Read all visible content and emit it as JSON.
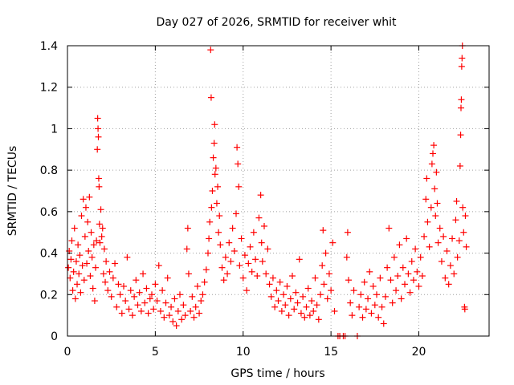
{
  "chart_data": {
    "type": "scatter",
    "title": "Day 027 of 2026, SRMTID for receiver whit",
    "xlabel": "GPS time / hours",
    "ylabel": "SRMTID / TECUs",
    "xlim": [
      0,
      24
    ],
    "ylim": [
      0,
      1.4
    ],
    "xticks": [
      0,
      5,
      10,
      15,
      20
    ],
    "xtick_labels": [
      "0",
      "5",
      "10",
      "15",
      "20"
    ],
    "yticks": [
      0,
      0.2,
      0.4,
      0.6,
      0.8,
      1.0,
      1.2,
      1.4
    ],
    "ytick_labels": [
      "0",
      "0.2",
      "0.4",
      "0.6",
      "0.8",
      "1",
      "1.2",
      "1.4"
    ],
    "grid": true,
    "marker": "+",
    "color": "#ff0000",
    "series": [
      {
        "name": "SRMTID",
        "points": [
          [
            0.05,
            0.33
          ],
          [
            0.1,
            0.41
          ],
          [
            0.15,
            0.28
          ],
          [
            0.2,
            0.37
          ],
          [
            0.25,
            0.46
          ],
          [
            0.3,
            0.22
          ],
          [
            0.35,
            0.31
          ],
          [
            0.4,
            0.52
          ],
          [
            0.45,
            0.18
          ],
          [
            0.5,
            0.36
          ],
          [
            0.55,
            0.25
          ],
          [
            0.6,
            0.44
          ],
          [
            0.65,
            0.3
          ],
          [
            0.7,
            0.39
          ],
          [
            0.75,
            0.21
          ],
          [
            0.8,
            0.58
          ],
          [
            0.85,
            0.34
          ],
          [
            0.9,
            0.66
          ],
          [
            0.95,
            0.27
          ],
          [
            1.0,
            0.48
          ],
          [
            1.05,
            0.62
          ],
          [
            1.1,
            0.35
          ],
          [
            1.15,
            0.55
          ],
          [
            1.2,
            0.41
          ],
          [
            1.25,
            0.67
          ],
          [
            1.3,
            0.29
          ],
          [
            1.35,
            0.5
          ],
          [
            1.4,
            0.38
          ],
          [
            1.45,
            0.23
          ],
          [
            1.5,
            0.44
          ],
          [
            1.55,
            0.17
          ],
          [
            1.6,
            0.33
          ],
          [
            1.65,
            0.46
          ],
          [
            1.7,
            0.9
          ],
          [
            1.72,
            1.05
          ],
          [
            1.74,
            1.0
          ],
          [
            1.76,
            0.96
          ],
          [
            1.78,
            0.76
          ],
          [
            1.8,
            0.72
          ],
          [
            1.82,
            0.54
          ],
          [
            1.85,
            0.45
          ],
          [
            1.9,
            0.61
          ],
          [
            1.95,
            0.48
          ],
          [
            2.0,
            0.52
          ],
          [
            2.05,
            0.3
          ],
          [
            2.1,
            0.42
          ],
          [
            2.15,
            0.26
          ],
          [
            2.2,
            0.36
          ],
          [
            2.3,
            0.22
          ],
          [
            2.4,
            0.31
          ],
          [
            2.5,
            0.19
          ],
          [
            2.6,
            0.28
          ],
          [
            2.7,
            0.35
          ],
          [
            2.8,
            0.14
          ],
          [
            2.9,
            0.25
          ],
          [
            3.0,
            0.2
          ],
          [
            3.1,
            0.11
          ],
          [
            3.2,
            0.24
          ],
          [
            3.3,
            0.17
          ],
          [
            3.4,
            0.38
          ],
          [
            3.5,
            0.13
          ],
          [
            3.6,
            0.22
          ],
          [
            3.7,
            0.1
          ],
          [
            3.8,
            0.19
          ],
          [
            3.9,
            0.27
          ],
          [
            4.0,
            0.15
          ],
          [
            4.1,
            0.21
          ],
          [
            4.2,
            0.12
          ],
          [
            4.3,
            0.3
          ],
          [
            4.4,
            0.16
          ],
          [
            4.5,
            0.23
          ],
          [
            4.6,
            0.11
          ],
          [
            4.7,
            0.18
          ],
          [
            4.8,
            0.2
          ],
          [
            4.9,
            0.13
          ],
          [
            5.0,
            0.25
          ],
          [
            5.1,
            0.17
          ],
          [
            5.2,
            0.34
          ],
          [
            5.3,
            0.12
          ],
          [
            5.4,
            0.22
          ],
          [
            5.5,
            0.09
          ],
          [
            5.6,
            0.16
          ],
          [
            5.7,
            0.28
          ],
          [
            5.8,
            0.1
          ],
          [
            5.9,
            0.14
          ],
          [
            6.0,
            0.07
          ],
          [
            6.1,
            0.18
          ],
          [
            6.2,
            0.05
          ],
          [
            6.3,
            0.12
          ],
          [
            6.4,
            0.2
          ],
          [
            6.5,
            0.08
          ],
          [
            6.6,
            0.15
          ],
          [
            6.7,
            0.1
          ],
          [
            6.8,
            0.42
          ],
          [
            6.85,
            0.52
          ],
          [
            6.9,
            0.3
          ],
          [
            7.0,
            0.12
          ],
          [
            7.1,
            0.19
          ],
          [
            7.2,
            0.09
          ],
          [
            7.3,
            0.14
          ],
          [
            7.4,
            0.24
          ],
          [
            7.5,
            0.11
          ],
          [
            7.6,
            0.17
          ],
          [
            7.7,
            0.2
          ],
          [
            7.8,
            0.26
          ],
          [
            7.9,
            0.32
          ],
          [
            8.0,
            0.4
          ],
          [
            8.05,
            0.47
          ],
          [
            8.1,
            0.55
          ],
          [
            8.15,
            1.38
          ],
          [
            8.18,
            1.15
          ],
          [
            8.2,
            0.62
          ],
          [
            8.25,
            0.7
          ],
          [
            8.3,
            0.86
          ],
          [
            8.35,
            0.93
          ],
          [
            8.38,
            1.02
          ],
          [
            8.4,
            0.78
          ],
          [
            8.45,
            0.81
          ],
          [
            8.5,
            0.64
          ],
          [
            8.55,
            0.72
          ],
          [
            8.6,
            0.5
          ],
          [
            8.65,
            0.58
          ],
          [
            8.7,
            0.44
          ],
          [
            8.8,
            0.33
          ],
          [
            8.9,
            0.27
          ],
          [
            9.0,
            0.38
          ],
          [
            9.1,
            0.3
          ],
          [
            9.2,
            0.45
          ],
          [
            9.3,
            0.36
          ],
          [
            9.4,
            0.52
          ],
          [
            9.5,
            0.41
          ],
          [
            9.6,
            0.59
          ],
          [
            9.65,
            0.91
          ],
          [
            9.7,
            0.83
          ],
          [
            9.75,
            0.72
          ],
          [
            9.8,
            0.34
          ],
          [
            9.9,
            0.47
          ],
          [
            10.0,
            0.28
          ],
          [
            10.1,
            0.39
          ],
          [
            10.2,
            0.22
          ],
          [
            10.3,
            0.35
          ],
          [
            10.4,
            0.43
          ],
          [
            10.5,
            0.31
          ],
          [
            10.6,
            0.5
          ],
          [
            10.7,
            0.37
          ],
          [
            10.8,
            0.29
          ],
          [
            10.9,
            0.57
          ],
          [
            11.0,
            0.68
          ],
          [
            11.05,
            0.45
          ],
          [
            11.1,
            0.36
          ],
          [
            11.2,
            0.53
          ],
          [
            11.3,
            0.3
          ],
          [
            11.4,
            0.42
          ],
          [
            11.5,
            0.25
          ],
          [
            11.6,
            0.19
          ],
          [
            11.7,
            0.28
          ],
          [
            11.8,
            0.14
          ],
          [
            11.9,
            0.22
          ],
          [
            12.0,
            0.17
          ],
          [
            12.1,
            0.26
          ],
          [
            12.2,
            0.12
          ],
          [
            12.3,
            0.2
          ],
          [
            12.4,
            0.15
          ],
          [
            12.5,
            0.24
          ],
          [
            12.6,
            0.1
          ],
          [
            12.7,
            0.18
          ],
          [
            12.8,
            0.29
          ],
          [
            12.9,
            0.13
          ],
          [
            13.0,
            0.21
          ],
          [
            13.1,
            0.16
          ],
          [
            13.2,
            0.37
          ],
          [
            13.3,
            0.11
          ],
          [
            13.4,
            0.19
          ],
          [
            13.5,
            0.09
          ],
          [
            13.6,
            0.14
          ],
          [
            13.7,
            0.23
          ],
          [
            13.8,
            0.1
          ],
          [
            13.9,
            0.17
          ],
          [
            14.0,
            0.12
          ],
          [
            14.1,
            0.28
          ],
          [
            14.2,
            0.15
          ],
          [
            14.3,
            0.08
          ],
          [
            14.4,
            0.2
          ],
          [
            14.5,
            0.34
          ],
          [
            14.55,
            0.51
          ],
          [
            14.6,
            0.25
          ],
          [
            14.7,
            0.4
          ],
          [
            14.8,
            0.18
          ],
          [
            14.9,
            0.3
          ],
          [
            15.0,
            0.22
          ],
          [
            15.1,
            0.45
          ],
          [
            15.2,
            0.12
          ],
          [
            15.4,
            0.0
          ],
          [
            15.5,
            0.0
          ],
          [
            15.7,
            0.0
          ],
          [
            15.8,
            0.0
          ],
          [
            15.9,
            0.38
          ],
          [
            15.95,
            0.5
          ],
          [
            16.0,
            0.27
          ],
          [
            16.1,
            0.16
          ],
          [
            16.2,
            0.1
          ],
          [
            16.3,
            0.22
          ],
          [
            16.5,
            0.0
          ],
          [
            16.6,
            0.14
          ],
          [
            16.7,
            0.2
          ],
          [
            16.8,
            0.09
          ],
          [
            16.9,
            0.26
          ],
          [
            17.0,
            0.13
          ],
          [
            17.1,
            0.18
          ],
          [
            17.2,
            0.31
          ],
          [
            17.3,
            0.11
          ],
          [
            17.4,
            0.24
          ],
          [
            17.5,
            0.15
          ],
          [
            17.6,
            0.2
          ],
          [
            17.7,
            0.09
          ],
          [
            17.8,
            0.28
          ],
          [
            17.9,
            0.14
          ],
          [
            18.0,
            0.06
          ],
          [
            18.1,
            0.19
          ],
          [
            18.2,
            0.33
          ],
          [
            18.3,
            0.52
          ],
          [
            18.4,
            0.27
          ],
          [
            18.5,
            0.16
          ],
          [
            18.6,
            0.38
          ],
          [
            18.7,
            0.22
          ],
          [
            18.8,
            0.29
          ],
          [
            18.9,
            0.44
          ],
          [
            19.0,
            0.18
          ],
          [
            19.1,
            0.33
          ],
          [
            19.2,
            0.25
          ],
          [
            19.3,
            0.47
          ],
          [
            19.4,
            0.3
          ],
          [
            19.5,
            0.21
          ],
          [
            19.6,
            0.36
          ],
          [
            19.7,
            0.27
          ],
          [
            19.8,
            0.42
          ],
          [
            19.9,
            0.31
          ],
          [
            20.0,
            0.24
          ],
          [
            20.1,
            0.38
          ],
          [
            20.2,
            0.29
          ],
          [
            20.3,
            0.48
          ],
          [
            20.4,
            0.66
          ],
          [
            20.45,
            0.76
          ],
          [
            20.5,
            0.55
          ],
          [
            20.6,
            0.43
          ],
          [
            20.7,
            0.62
          ],
          [
            20.75,
            0.83
          ],
          [
            20.8,
            0.88
          ],
          [
            20.85,
            0.92
          ],
          [
            20.9,
            0.71
          ],
          [
            20.95,
            0.58
          ],
          [
            21.0,
            0.79
          ],
          [
            21.05,
            0.64
          ],
          [
            21.1,
            0.45
          ],
          [
            21.2,
            0.52
          ],
          [
            21.3,
            0.36
          ],
          [
            21.4,
            0.48
          ],
          [
            21.5,
            0.28
          ],
          [
            21.6,
            0.41
          ],
          [
            21.7,
            0.25
          ],
          [
            21.8,
            0.34
          ],
          [
            21.9,
            0.47
          ],
          [
            22.0,
            0.3
          ],
          [
            22.1,
            0.56
          ],
          [
            22.15,
            0.65
          ],
          [
            22.2,
            0.38
          ],
          [
            22.3,
            0.46
          ],
          [
            22.35,
            0.82
          ],
          [
            22.38,
            0.97
          ],
          [
            22.4,
            1.1
          ],
          [
            22.42,
            1.14
          ],
          [
            22.44,
            1.3
          ],
          [
            22.46,
            1.34
          ],
          [
            22.48,
            1.4
          ],
          [
            22.5,
            0.62
          ],
          [
            22.55,
            0.5
          ],
          [
            22.6,
            0.14
          ],
          [
            22.62,
            0.13
          ],
          [
            22.65,
            0.58
          ],
          [
            22.7,
            0.43
          ]
        ]
      }
    ]
  }
}
